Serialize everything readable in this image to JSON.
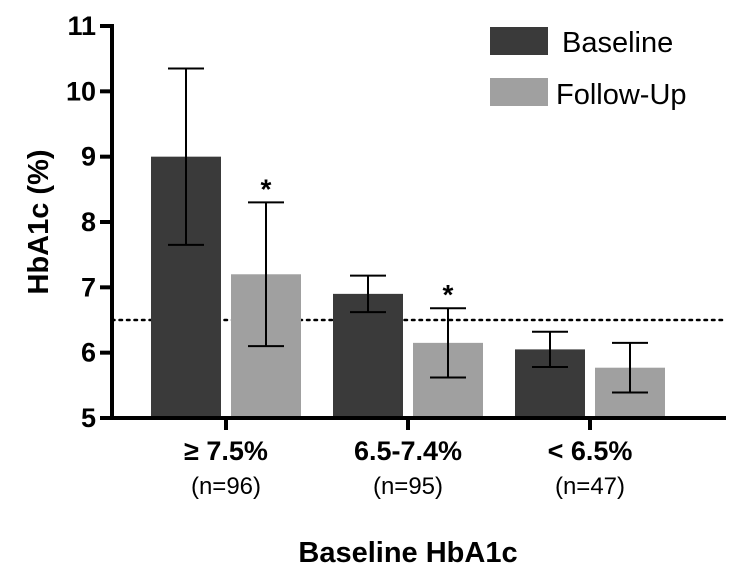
{
  "chart_data": {
    "type": "bar",
    "title": "",
    "xlabel": "Baseline HbA1c",
    "ylabel": "HbA1c (%)",
    "ylim": [
      5,
      11
    ],
    "yticks": [
      5,
      6,
      7,
      8,
      9,
      10,
      11
    ],
    "reference_line": {
      "value": 6.5,
      "style": "dotted"
    },
    "legend_position": "top-right",
    "categories": [
      "≥ 7.5%",
      "6.5-7.4%",
      "< 6.5%"
    ],
    "category_sublabels": [
      "(n=96)",
      "(n=95)",
      "(n=47)"
    ],
    "series": [
      {
        "name": "Baseline",
        "color": "#3a3a3a",
        "values": [
          9.0,
          6.9,
          6.05
        ],
        "error": [
          1.35,
          0.28,
          0.27
        ]
      },
      {
        "name": "Follow-Up",
        "color": "#a0a0a0",
        "values": [
          7.2,
          6.15,
          5.77
        ],
        "error": [
          1.1,
          0.53,
          0.38
        ]
      }
    ],
    "annotations": [
      {
        "category": 0,
        "series": 1,
        "text": "*"
      },
      {
        "category": 1,
        "series": 1,
        "text": "*"
      }
    ]
  }
}
